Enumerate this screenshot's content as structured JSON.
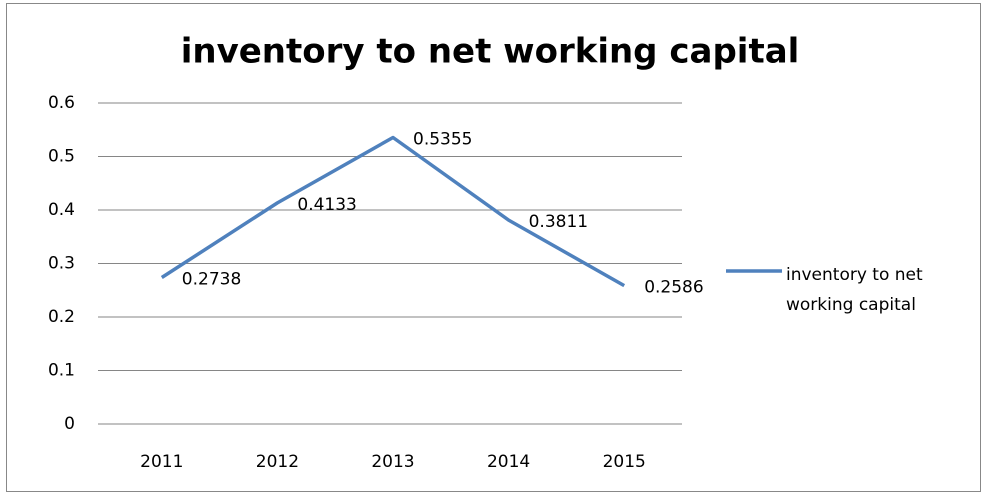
{
  "chart_data": {
    "type": "line",
    "title": "inventory to net working capital",
    "categories": [
      "2011",
      "2012",
      "2013",
      "2014",
      "2015"
    ],
    "series": [
      {
        "name": "inventory to net working capital",
        "color": "#4f81bd",
        "values": [
          0.2738,
          0.4133,
          0.5355,
          0.3811,
          0.2586
        ]
      }
    ],
    "ylim": [
      0,
      0.6
    ],
    "yticks": [
      0,
      0.1,
      0.2,
      0.3,
      0.4,
      0.5,
      0.6
    ],
    "grid": true,
    "legend": "right"
  }
}
